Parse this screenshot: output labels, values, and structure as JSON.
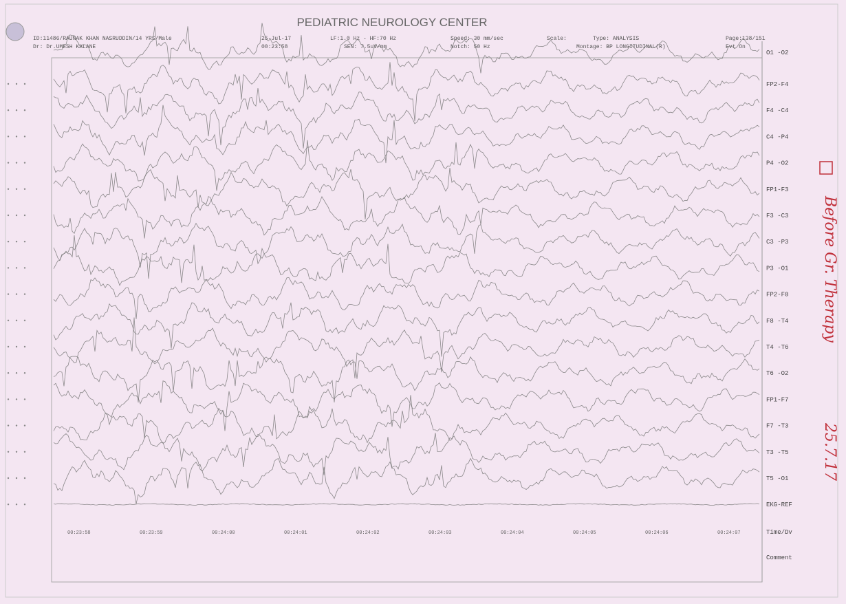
{
  "header": {
    "title": "PEDIATRIC NEUROLOGY CENTER",
    "patient": "ID:11486/RAUNAK KHAN NASRUDDIN/14 YRS/Male",
    "doctor": "Dr: Dr.UMESH KALANE",
    "date": "25-Jul-17",
    "time": "00:23:58",
    "filter": "LF:1.0 Hz - HF:70 Hz",
    "sensitivity": "SEN: 7.5uV/mm",
    "speed": "Speed: 30 mm/sec",
    "scale": "Scale:",
    "notch": "Notch: 50 Hz",
    "type": "Type: ANALYSIS",
    "montage": "Montage: BP LONGITUDINAL(R)",
    "page": "Page:138/151",
    "event": "Evt On"
  },
  "channels": [
    "O1 -O2",
    "FP2-F4",
    "F4 -C4",
    "C4 -P4",
    "P4 -O2",
    "FP1-F3",
    "F3 -C3",
    "C3 -P3",
    "P3 -O1",
    "FP2-F8",
    "F8 -T4",
    "T4 -T6",
    "T6 -O2",
    "FP1-F7",
    "F7 -T3",
    "T3 -T5",
    "T5 -O1",
    "EKG-REF"
  ],
  "rows": [
    "Time/Dv",
    "Comment"
  ],
  "time_marks": [
    "00:23:58",
    "00:23:59",
    "00:24:00",
    "00:24:01",
    "00:24:02",
    "00:24:03",
    "00:24:04",
    "00:24:05",
    "00:24:06",
    "00:24:07"
  ],
  "handwritten": {
    "note": "Before Gr. Therapy",
    "date": "25.7.17"
  }
}
